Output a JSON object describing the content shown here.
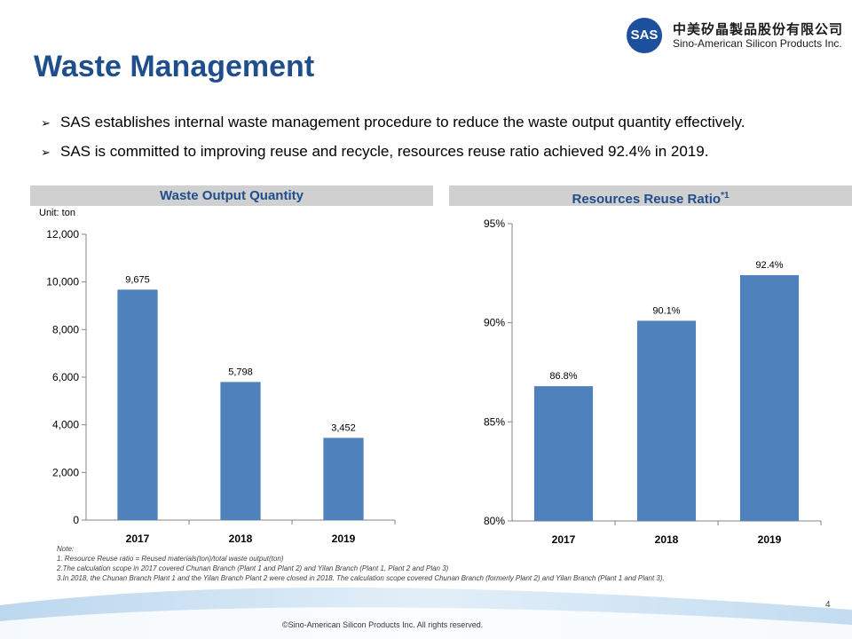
{
  "title": "Waste Management",
  "logo": {
    "mark": "SAS",
    "cn": "中美矽晶製品股份有限公司",
    "en": "Sino-American Silicon Products Inc."
  },
  "bullets": [
    "SAS establishes internal waste management procedure to reduce the waste output quantity effectively.",
    "SAS is committed to improving reuse and recycle,  resources reuse ratio achieved  92.4% in 2019."
  ],
  "colors": {
    "bar": "#4f81bd",
    "title": "#1f4e8c",
    "panel_bg": "#d0d0d0"
  },
  "chart_data": [
    {
      "type": "bar",
      "title": "Waste Output Quantity",
      "unit_label": "Unit: ton",
      "categories": [
        "2017",
        "2018",
        "2019"
      ],
      "values": [
        9675,
        5798,
        3452
      ],
      "data_labels": [
        "9,675",
        "5,798",
        "3,452"
      ],
      "ylim": [
        0,
        12000
      ],
      "yticks": [
        0,
        2000,
        4000,
        6000,
        8000,
        10000,
        12000
      ],
      "ytick_labels": [
        "0",
        "2,000",
        "4,000",
        "6,000",
        "8,000",
        "10,000",
        "12,000"
      ],
      "grid": false
    },
    {
      "type": "bar",
      "title": "Resources Reuse Ratio",
      "title_sup": "*1",
      "categories": [
        "2017",
        "2018",
        "2019"
      ],
      "values": [
        86.8,
        90.1,
        92.4
      ],
      "data_labels": [
        "86.8%",
        "90.1%",
        "92.4%"
      ],
      "ylim": [
        80,
        95
      ],
      "yticks": [
        80,
        85,
        90,
        95
      ],
      "ytick_labels": [
        "80%",
        "85%",
        "90%",
        "95%"
      ],
      "grid": false
    }
  ],
  "notes": [
    "Note:",
    "1. Resource Reuse ratio = Reused materials(ton)/total waste output(ton)",
    "2.The calculation scope in 2017 covered Chunan Branch (Plant 1 and Plant 2) and Yilan Branch (Plant 1, Plant 2 and Plan 3)",
    "3.In 2018, the Chunan Branch Plant 1 and the Yilan Branch Plant 2 were closed in 2018. The calculation scope covered Chunan Branch (formerly Plant 2) and Yilan Branch (Plant 1 and Plant 3)."
  ],
  "page_number": "4",
  "copyright": "©Sino-American Silicon Products Inc. All rights reserved."
}
